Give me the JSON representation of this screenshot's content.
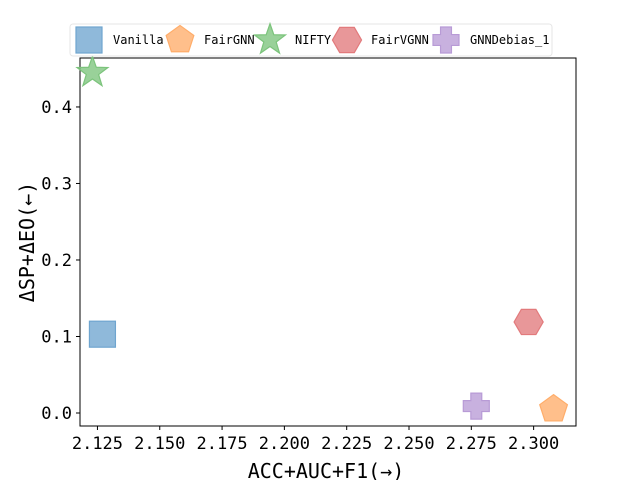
{
  "chart_data": {
    "type": "scatter",
    "xlabel": "ACC+AUC+F1(→)",
    "ylabel": "ΔSP+ΔEO(←)",
    "xlim": [
      2.118,
      2.317
    ],
    "ylim": [
      -0.017,
      0.464
    ],
    "xticks": [
      "2.125",
      "2.150",
      "2.175",
      "2.200",
      "2.225",
      "2.250",
      "2.275",
      "2.300"
    ],
    "xtick_values": [
      2.125,
      2.15,
      2.175,
      2.2,
      2.225,
      2.25,
      2.275,
      2.3
    ],
    "yticks": [
      "0.0",
      "0.1",
      "0.2",
      "0.3",
      "0.4"
    ],
    "ytick_values": [
      0.0,
      0.1,
      0.2,
      0.3,
      0.4
    ],
    "grid": false,
    "legend_position": "top",
    "series": [
      {
        "name": "Vanilla",
        "marker": "square",
        "color": "#6FA5CF",
        "x": 2.127,
        "y": 0.103
      },
      {
        "name": "FairGNN",
        "marker": "pentagon",
        "color": "#FFAD6A",
        "x": 2.308,
        "y": 0.005
      },
      {
        "name": "NIFTY",
        "marker": "star",
        "color": "#7CC47C",
        "x": 2.123,
        "y": 0.445
      },
      {
        "name": "FairVGNN",
        "marker": "hexagon",
        "color": "#E27A7C",
        "x": 2.298,
        "y": 0.119
      },
      {
        "name": "GNNDebias_1",
        "marker": "plus",
        "color": "#B89BD6",
        "x": 2.277,
        "y": 0.009
      }
    ]
  }
}
